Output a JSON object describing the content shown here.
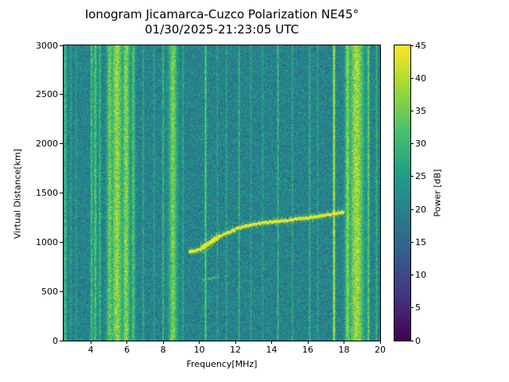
{
  "chart_data": {
    "type": "heatmap",
    "title": "Ionogram Jicamarca-Cuzco Polarization NE45°",
    "subtitle": "01/30/2025-21:23:05 UTC",
    "xlabel": "Frequency[MHz]",
    "ylabel": "Virtual Distance[km]",
    "x_range": [
      2.5,
      20
    ],
    "y_range": [
      0,
      3000
    ],
    "x_ticks": [
      4,
      6,
      8,
      10,
      12,
      14,
      16,
      18,
      20
    ],
    "y_ticks": [
      0,
      500,
      1000,
      1500,
      2000,
      2500,
      3000
    ],
    "grid": false,
    "colorbar": {
      "label": "Power [dB]",
      "range": [
        0,
        45
      ],
      "ticks": [
        0,
        5,
        10,
        15,
        20,
        25,
        30,
        35,
        40,
        45
      ],
      "colormap": "viridis"
    },
    "colormap_stops": [
      [
        0.0,
        "#440154"
      ],
      [
        0.14,
        "#46327e"
      ],
      [
        0.29,
        "#365c8d"
      ],
      [
        0.43,
        "#277f8e"
      ],
      [
        0.57,
        "#1fa187"
      ],
      [
        0.71,
        "#4ac16d"
      ],
      [
        0.86,
        "#a0da39"
      ],
      [
        1.0,
        "#fde725"
      ]
    ],
    "noise_db": {
      "base": 11,
      "spread": 9
    },
    "rfi_bands": [
      {
        "f": 2.55,
        "sigma": 0.02,
        "p": 33
      },
      {
        "f": 2.62,
        "sigma": 0.025,
        "p": 35
      },
      {
        "f": 2.9,
        "sigma": 0.02,
        "p": 30
      },
      {
        "f": 3.2,
        "sigma": 0.02,
        "p": 28
      },
      {
        "f": 4.05,
        "sigma": 0.05,
        "p": 33
      },
      {
        "f": 4.25,
        "sigma": 0.06,
        "p": 34
      },
      {
        "f": 4.5,
        "sigma": 0.05,
        "p": 31
      },
      {
        "f": 5.05,
        "sigma": 0.12,
        "p": 36
      },
      {
        "f": 5.45,
        "sigma": 0.22,
        "p": 39
      },
      {
        "f": 5.95,
        "sigma": 0.15,
        "p": 38
      },
      {
        "f": 6.35,
        "sigma": 0.08,
        "p": 33
      },
      {
        "f": 6.9,
        "sigma": 0.03,
        "p": 29
      },
      {
        "f": 7.5,
        "sigma": 0.03,
        "p": 27
      },
      {
        "f": 8.0,
        "sigma": 0.04,
        "p": 31
      },
      {
        "f": 8.55,
        "sigma": 0.16,
        "p": 37
      },
      {
        "f": 9.1,
        "sigma": 0.03,
        "p": 29
      },
      {
        "f": 10.35,
        "sigma": 0.035,
        "p": 37
      },
      {
        "f": 11.0,
        "sigma": 0.025,
        "p": 28
      },
      {
        "f": 11.5,
        "sigma": 0.025,
        "p": 29
      },
      {
        "f": 12.2,
        "sigma": 0.03,
        "p": 32
      },
      {
        "f": 12.85,
        "sigma": 0.025,
        "p": 28
      },
      {
        "f": 13.5,
        "sigma": 0.025,
        "p": 28
      },
      {
        "f": 14.35,
        "sigma": 0.03,
        "p": 33
      },
      {
        "f": 15.15,
        "sigma": 0.025,
        "p": 29
      },
      {
        "f": 16.1,
        "sigma": 0.03,
        "p": 31
      },
      {
        "f": 16.55,
        "sigma": 0.025,
        "p": 28
      },
      {
        "f": 17.45,
        "sigma": 0.045,
        "p": 43
      },
      {
        "f": 18.2,
        "sigma": 0.1,
        "p": 38
      },
      {
        "f": 18.7,
        "sigma": 0.28,
        "p": 40
      },
      {
        "f": 19.35,
        "sigma": 0.05,
        "p": 36
      },
      {
        "f": 19.8,
        "sigma": 0.04,
        "p": 30
      }
    ],
    "echo_trace": {
      "power": 43,
      "half_width_km": 16,
      "points": [
        [
          9.4,
          905
        ],
        [
          9.6,
          910
        ],
        [
          9.8,
          915
        ],
        [
          10.0,
          925
        ],
        [
          10.2,
          950
        ],
        [
          10.5,
          985
        ],
        [
          10.8,
          1020
        ],
        [
          11.2,
          1065
        ],
        [
          11.6,
          1100
        ],
        [
          12.0,
          1130
        ],
        [
          12.5,
          1160
        ],
        [
          13.0,
          1180
        ],
        [
          13.5,
          1195
        ],
        [
          14.0,
          1205
        ],
        [
          14.5,
          1215
        ],
        [
          15.0,
          1225
        ],
        [
          15.5,
          1235
        ],
        [
          16.0,
          1245
        ],
        [
          16.5,
          1260
        ],
        [
          17.0,
          1275
        ],
        [
          17.4,
          1290
        ],
        [
          18.0,
          1305
        ]
      ]
    },
    "secondary_echo": {
      "power": 31,
      "half_width_km": 14,
      "points": [
        [
          10.2,
          615
        ],
        [
          10.7,
          635
        ],
        [
          11.1,
          650
        ]
      ]
    }
  }
}
